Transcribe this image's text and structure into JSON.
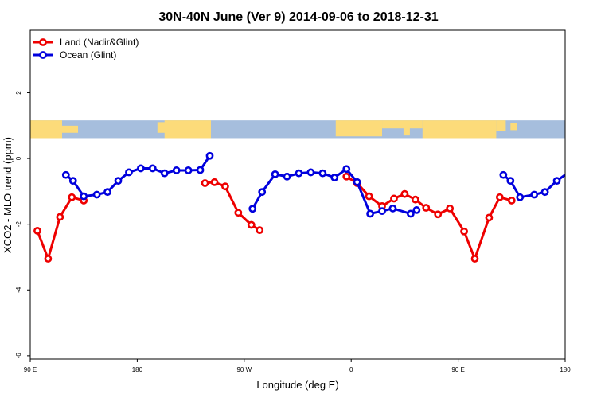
{
  "chart_data": {
    "type": "line",
    "title": "30N-40N June (Ver 9)   2014-09-06 to 2018-12-31",
    "xlabel": "Longitude (deg E)",
    "ylabel": "XCO2 - MLO trend (ppm)",
    "x_ticks": [
      90,
      180,
      270,
      360,
      450,
      540
    ],
    "x_tick_labels": [
      "90 E",
      "180",
      "90 W",
      "0",
      "90 E",
      "180"
    ],
    "xlim": [
      90,
      540
    ],
    "y_ticks": [
      -6,
      -4,
      -2,
      0,
      2
    ],
    "y_tick_labels": [
      "-6",
      "-4",
      "-2",
      "0",
      "2"
    ],
    "ylim": [
      -6.1,
      3.9
    ],
    "map_band": {
      "y_top": 1.16,
      "y_bottom": 0.62,
      "ocean_color": "#a6bedd",
      "land_color": "#fcdb7a"
    },
    "legend": {
      "position": "top-left"
    },
    "series": [
      {
        "name": "Land (Nadir&Glint)",
        "color": "#ee0000",
        "segments": [
          [
            [
              96,
              -2.2
            ],
            [
              105,
              -3.05
            ],
            [
              115,
              -1.78
            ],
            [
              125,
              -1.18
            ],
            [
              135,
              -1.28
            ]
          ],
          [
            [
              237,
              -0.75
            ],
            [
              245,
              -0.72
            ],
            [
              254,
              -0.85
            ],
            [
              265,
              -1.65
            ],
            [
              276,
              -2.02
            ],
            [
              283,
              -2.18
            ]
          ],
          [
            [
              356,
              -0.55
            ],
            [
              365,
              -0.75
            ],
            [
              375,
              -1.15
            ],
            [
              386,
              -1.45
            ],
            [
              396,
              -1.22
            ],
            [
              405,
              -1.08
            ],
            [
              414,
              -1.25
            ],
            [
              423,
              -1.5
            ],
            [
              433,
              -1.7
            ],
            [
              443,
              -1.52
            ],
            [
              455,
              -2.22
            ],
            [
              464,
              -3.05
            ],
            [
              476,
              -1.8
            ],
            [
              485,
              -1.18
            ],
            [
              495,
              -1.28
            ]
          ]
        ]
      },
      {
        "name": "Ocean (Glint)",
        "color": "#0000dd",
        "segments": [
          [
            [
              120,
              -0.5
            ],
            [
              126,
              -0.68
            ],
            [
              135,
              -1.15
            ],
            [
              146,
              -1.1
            ],
            [
              155,
              -1.02
            ],
            [
              164,
              -0.68
            ],
            [
              173,
              -0.42
            ],
            [
              183,
              -0.3
            ],
            [
              193,
              -0.3
            ],
            [
              203,
              -0.45
            ],
            [
              213,
              -0.36
            ],
            [
              223,
              -0.36
            ],
            [
              233,
              -0.35
            ],
            [
              241,
              0.08
            ]
          ],
          [
            [
              277,
              -1.53
            ],
            [
              285,
              -1.02
            ],
            [
              296,
              -0.48
            ],
            [
              306,
              -0.55
            ],
            [
              316,
              -0.45
            ],
            [
              326,
              -0.42
            ],
            [
              336,
              -0.45
            ],
            [
              346,
              -0.58
            ],
            [
              356,
              -0.32
            ],
            [
              365,
              -0.72
            ],
            [
              376,
              -1.68
            ],
            [
              386,
              -1.6
            ],
            [
              395,
              -1.52
            ],
            [
              410,
              -1.68
            ],
            [
              415,
              -1.57
            ]
          ],
          [
            [
              488,
              -0.5
            ],
            [
              494,
              -0.68
            ],
            [
              502,
              -1.18
            ],
            [
              514,
              -1.1
            ],
            [
              523,
              -1.02
            ],
            [
              533,
              -0.68
            ],
            [
              543,
              -0.42
            ]
          ]
        ]
      }
    ]
  }
}
